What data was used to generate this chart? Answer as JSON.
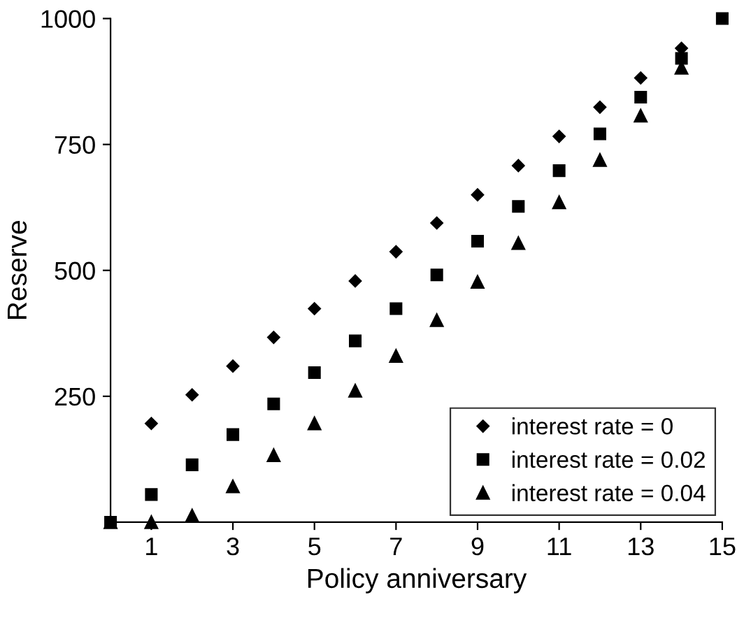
{
  "chart_data": {
    "type": "scatter",
    "xlabel": "Policy anniversary",
    "ylabel": "Reserve",
    "x": [
      0,
      1,
      2,
      3,
      4,
      5,
      6,
      7,
      8,
      9,
      10,
      11,
      12,
      13,
      14,
      15
    ],
    "series": [
      {
        "name": "interest rate = 0",
        "color": "#000000",
        "marker": "diamond",
        "values": [
          null,
          196,
          253,
          310,
          367,
          424,
          479,
          537,
          594,
          650,
          708,
          766,
          824,
          882,
          941,
          null
        ]
      },
      {
        "name": "interest rate = 0.02",
        "color": "#000000",
        "marker": "square",
        "values": [
          0,
          55,
          114,
          174,
          235,
          297,
          360,
          424,
          491,
          558,
          627,
          698,
          771,
          844,
          921,
          1000
        ]
      },
      {
        "name": "interest rate = 0.04",
        "color": "#000000",
        "marker": "triangle",
        "values": [
          0,
          0,
          13,
          71,
          133,
          196,
          261,
          330,
          401,
          477,
          554,
          635,
          719,
          807,
          902,
          null
        ]
      }
    ],
    "xlim": [
      0,
      15
    ],
    "ylim": [
      0,
      1000
    ],
    "xticks": [
      1,
      3,
      5,
      7,
      9,
      11,
      13,
      15
    ],
    "yticks": [
      250,
      500,
      750,
      1000
    ],
    "grid": false,
    "legend": "bottom right"
  }
}
